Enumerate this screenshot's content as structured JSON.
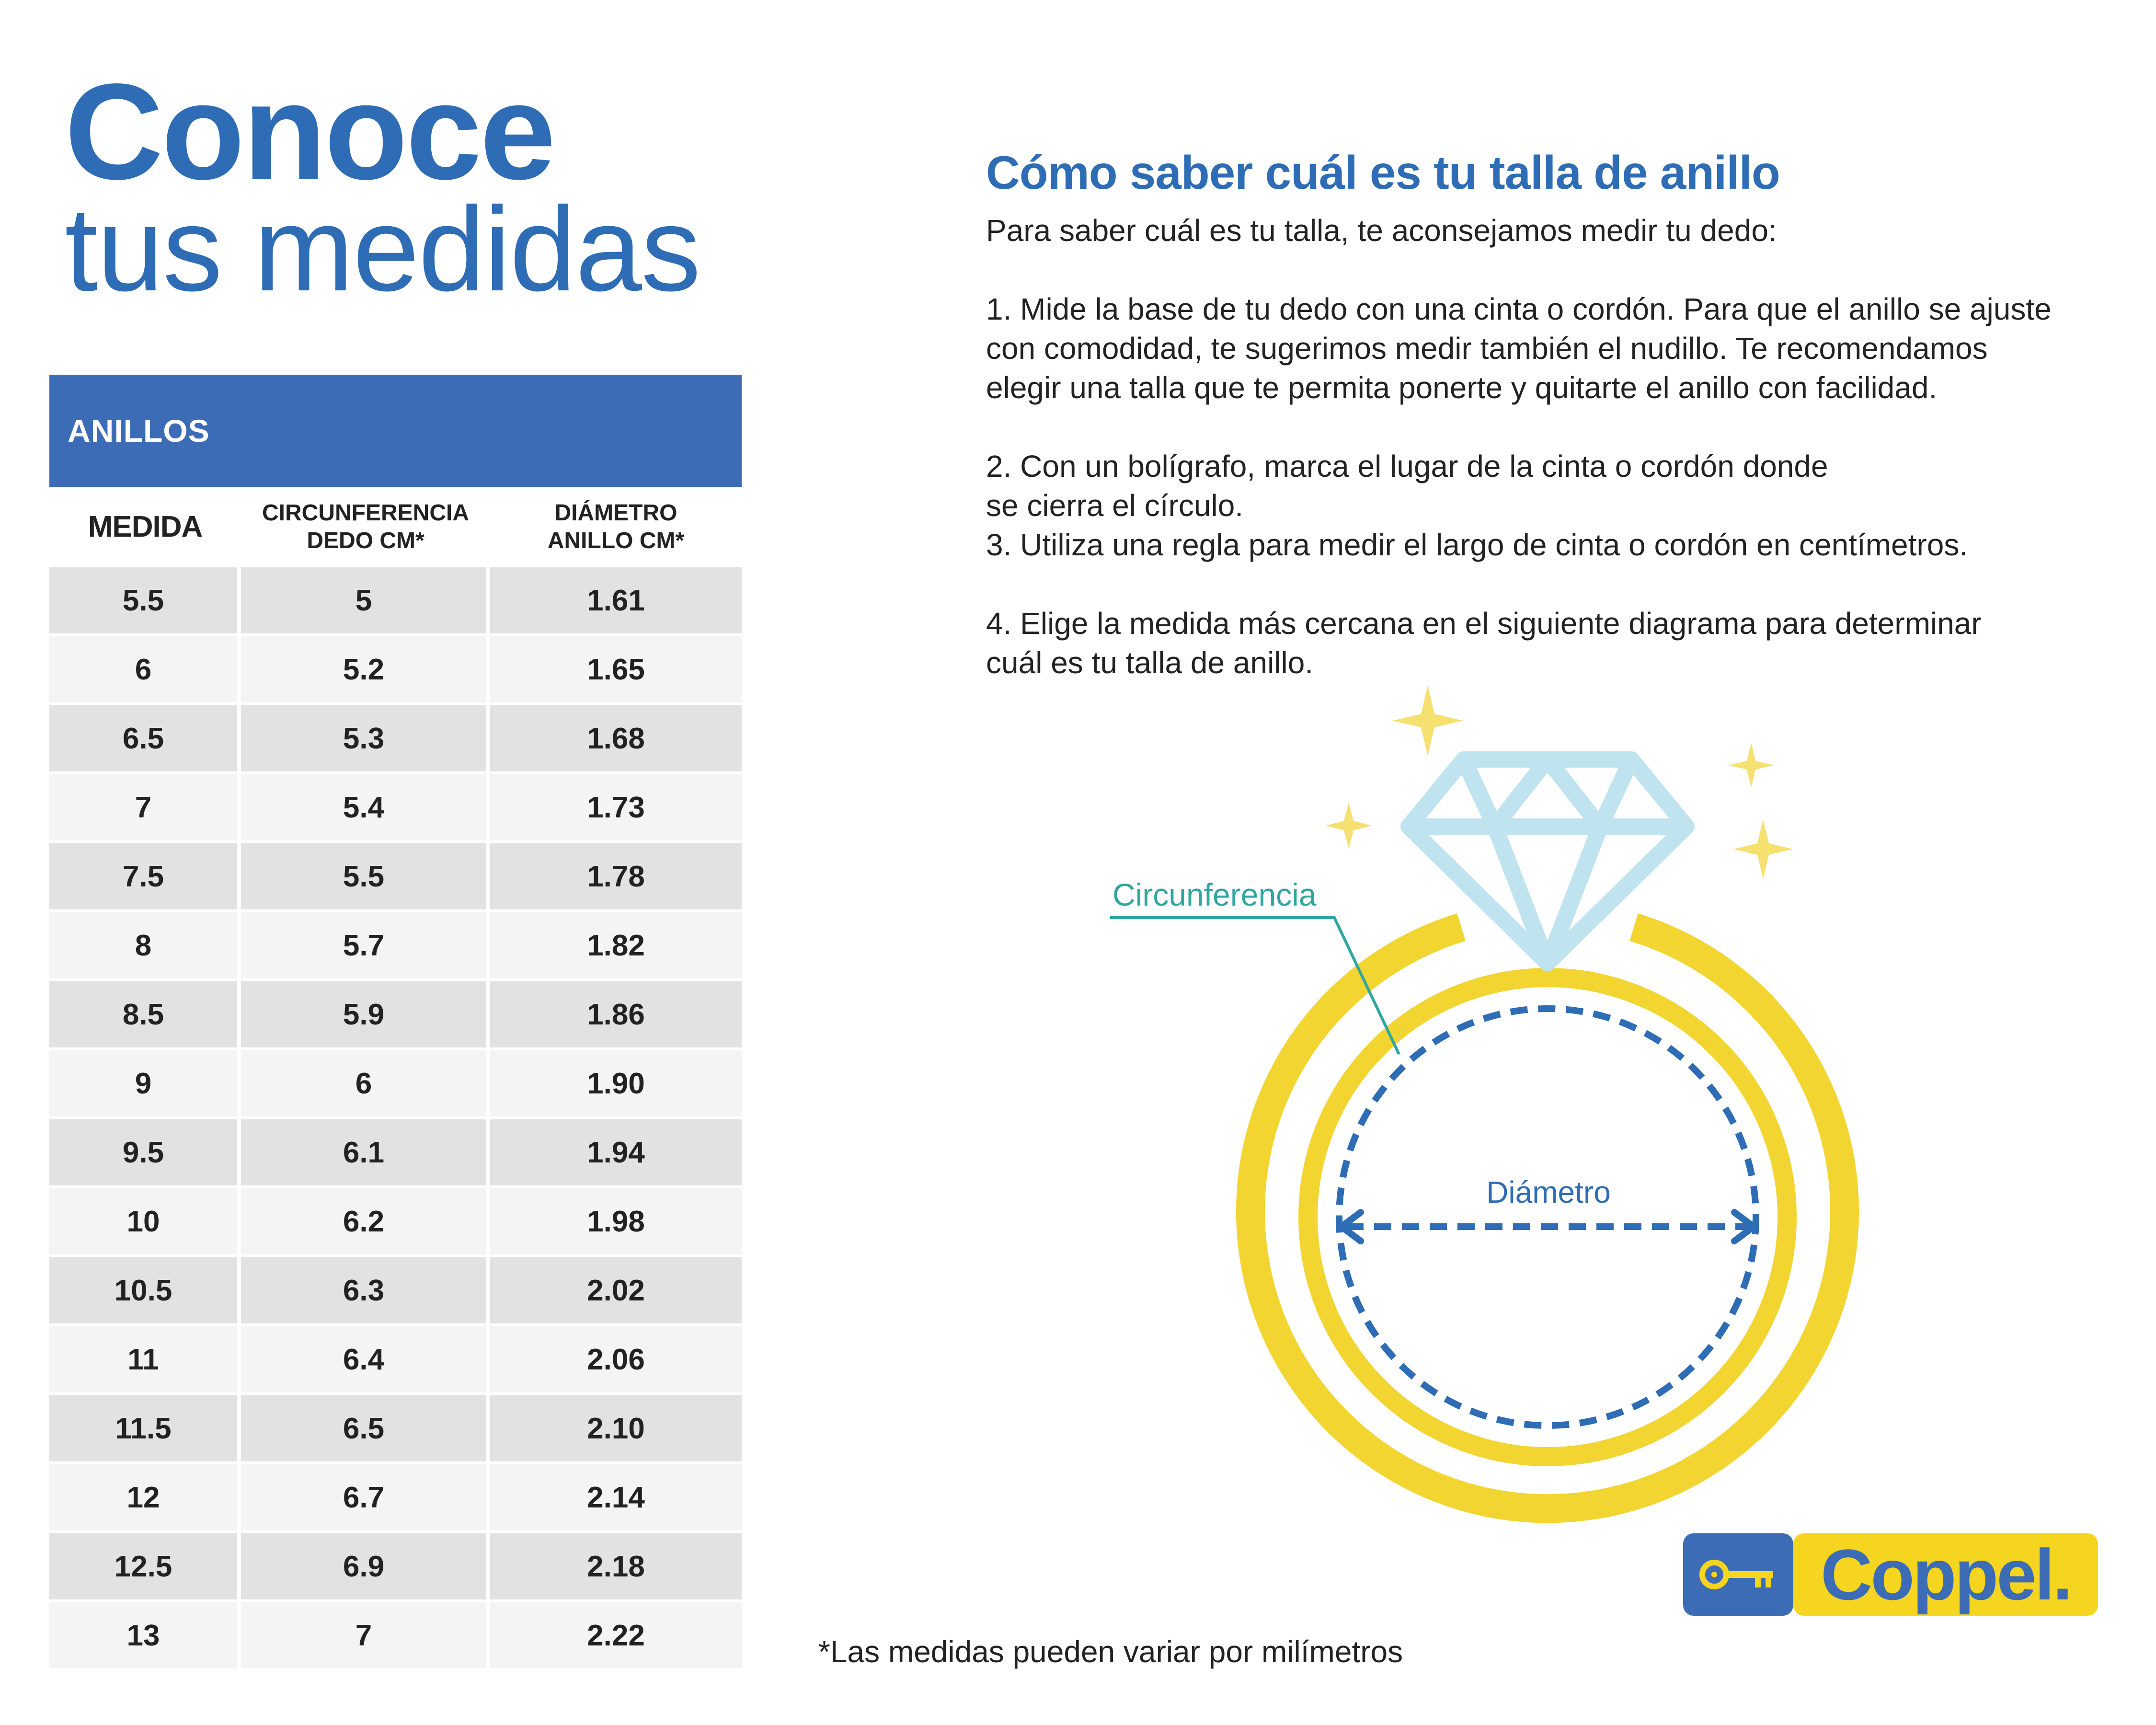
{
  "title": {
    "line1": "Conoce",
    "line2": "tus medidas"
  },
  "table": {
    "banner": "ANILLOS",
    "headers": {
      "medida": "MEDIDA",
      "circ_line1": "CIRCUNFERENCIA",
      "circ_line2": "DEDO CM*",
      "diam_line1": "DIÁMETRO",
      "diam_line2": "ANILLO CM*"
    },
    "rows": [
      [
        "5.5",
        "5",
        "1.61"
      ],
      [
        "6",
        "5.2",
        "1.65"
      ],
      [
        "6.5",
        "5.3",
        "1.68"
      ],
      [
        "7",
        "5.4",
        "1.73"
      ],
      [
        "7.5",
        "5.5",
        "1.78"
      ],
      [
        "8",
        "5.7",
        "1.82"
      ],
      [
        "8.5",
        "5.9",
        "1.86"
      ],
      [
        "9",
        "6",
        "1.90"
      ],
      [
        "9.5",
        "6.1",
        "1.94"
      ],
      [
        "10",
        "6.2",
        "1.98"
      ],
      [
        "10.5",
        "6.3",
        "2.02"
      ],
      [
        "11",
        "6.4",
        "2.06"
      ],
      [
        "11.5",
        "6.5",
        "2.10"
      ],
      [
        "12",
        "6.7",
        "2.14"
      ],
      [
        "12.5",
        "6.9",
        "2.18"
      ],
      [
        "13",
        "7",
        "2.22"
      ]
    ]
  },
  "instructions": {
    "title": "Cómo saber cuál es tu talla de anillo",
    "intro": "Para saber cuál es tu talla, te aconsejamos medir tu dedo:",
    "step1_l1": "1. Mide la base de tu dedo con una cinta o cordón. Para que el anillo se ajuste",
    "step1_l2": "con comodidad, te sugerimos medir también el nudillo. Te recomendamos",
    "step1_l3": "elegir una talla que te permita ponerte y quitarte el anillo con facilidad.",
    "step2_l1": "2. Con un bolígrafo, marca el lugar de la cinta o cordón donde",
    "step2_l2": "se cierra el círculo.",
    "step3": "3. Utiliza una regla para medir el largo de cinta o cordón en centímetros.",
    "step4_l1": "4. Elige la medida más cercana en el siguiente diagrama para determinar",
    "step4_l2": "cuál es tu talla de anillo."
  },
  "diagram": {
    "circumference_label": "Circunferencia",
    "diameter_label": "Diámetro",
    "colors": {
      "ring": "#f3d531",
      "gem": "#bfe3ef",
      "dash": "#2e6db5",
      "leader": "#2fa7a0"
    }
  },
  "logo": {
    "word": "Coppel.",
    "key_icon": "key-icon"
  },
  "footnote": "*Las medidas pueden variar por milímetros"
}
